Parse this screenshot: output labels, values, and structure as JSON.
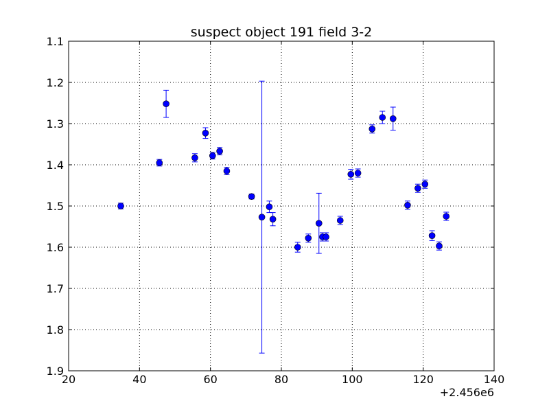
{
  "chart_data": {
    "type": "scatter",
    "title": "suspect object 191 field 3-2",
    "xlabel": "",
    "ylabel": "",
    "x_offset_label": "+2.456e6",
    "xlim": [
      20,
      140
    ],
    "ylim": [
      1.1,
      1.9
    ],
    "y_inverted": true,
    "grid": true,
    "x_ticks": [
      20,
      40,
      60,
      80,
      100,
      120,
      140
    ],
    "y_ticks": [
      1.1,
      1.2,
      1.3,
      1.4,
      1.5,
      1.6,
      1.7,
      1.8,
      1.9
    ],
    "x_tick_labels": [
      "20",
      "40",
      "60",
      "80",
      "100",
      "120",
      "140"
    ],
    "y_tick_labels": [
      "1.1",
      "1.2",
      "1.3",
      "1.4",
      "1.5",
      "1.6",
      "1.7",
      "1.8",
      "1.9"
    ],
    "marker_color": "#0000ff",
    "points": [
      {
        "x": 34.7,
        "y": 1.5,
        "err": 0.007
      },
      {
        "x": 45.6,
        "y": 1.395,
        "err": 0.008
      },
      {
        "x": 47.5,
        "y": 1.252,
        "err": 0.033
      },
      {
        "x": 55.6,
        "y": 1.383,
        "err": 0.01
      },
      {
        "x": 58.6,
        "y": 1.323,
        "err": 0.013
      },
      {
        "x": 60.6,
        "y": 1.378,
        "err": 0.008
      },
      {
        "x": 62.6,
        "y": 1.367,
        "err": 0.009
      },
      {
        "x": 64.6,
        "y": 1.415,
        "err": 0.009
      },
      {
        "x": 71.6,
        "y": 1.477,
        "err": 0.006
      },
      {
        "x": 74.5,
        "y": 1.527,
        "err": 0.33
      },
      {
        "x": 76.6,
        "y": 1.502,
        "err": 0.014
      },
      {
        "x": 77.6,
        "y": 1.532,
        "err": 0.016
      },
      {
        "x": 84.6,
        "y": 1.6,
        "err": 0.012
      },
      {
        "x": 87.6,
        "y": 1.578,
        "err": 0.01
      },
      {
        "x": 90.6,
        "y": 1.542,
        "err": 0.073
      },
      {
        "x": 91.6,
        "y": 1.575,
        "err": 0.01
      },
      {
        "x": 92.6,
        "y": 1.575,
        "err": 0.01
      },
      {
        "x": 96.6,
        "y": 1.535,
        "err": 0.01
      },
      {
        "x": 99.6,
        "y": 1.423,
        "err": 0.012
      },
      {
        "x": 101.6,
        "y": 1.42,
        "err": 0.01
      },
      {
        "x": 105.6,
        "y": 1.313,
        "err": 0.01
      },
      {
        "x": 108.5,
        "y": 1.285,
        "err": 0.015
      },
      {
        "x": 111.5,
        "y": 1.288,
        "err": 0.028
      },
      {
        "x": 115.6,
        "y": 1.498,
        "err": 0.01
      },
      {
        "x": 118.5,
        "y": 1.457,
        "err": 0.01
      },
      {
        "x": 120.5,
        "y": 1.447,
        "err": 0.01
      },
      {
        "x": 122.5,
        "y": 1.572,
        "err": 0.012
      },
      {
        "x": 124.5,
        "y": 1.597,
        "err": 0.01
      },
      {
        "x": 126.5,
        "y": 1.525,
        "err": 0.01
      }
    ]
  }
}
